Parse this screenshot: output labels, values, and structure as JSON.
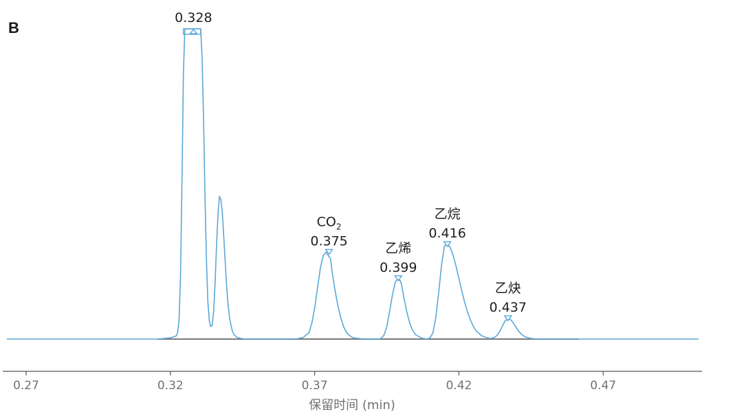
{
  "panel_label": "B",
  "chart_data": {
    "type": "line",
    "xlabel": "保留时间 (min)",
    "ylabel": "",
    "xlim": [
      0.262,
      0.507
    ],
    "x_ticks": [
      0.27,
      0.32,
      0.37,
      0.42,
      0.47
    ],
    "x_tick_labels": [
      "0.27",
      "0.32",
      "0.37",
      "0.42",
      "0.47"
    ],
    "ylim": [
      0,
      1
    ],
    "grid": false,
    "series": [
      {
        "color": "#5aa7d6",
        "x": [
          0.262,
          0.316,
          0.318,
          0.32,
          0.322,
          0.3225,
          0.323,
          0.3235,
          0.324,
          0.3245,
          0.325,
          0.3285,
          0.3305,
          0.331,
          0.3315,
          0.332,
          0.3325,
          0.333,
          0.3335,
          0.334,
          0.3345,
          0.335,
          0.3355,
          0.336,
          0.3365,
          0.337,
          0.3375,
          0.338,
          0.3385,
          0.339,
          0.3395,
          0.34,
          0.3405,
          0.341,
          0.3415,
          0.342,
          0.343,
          0.344,
          0.345,
          0.347,
          0.35,
          0.36,
          0.364,
          0.366,
          0.368,
          0.369,
          0.37,
          0.371,
          0.372,
          0.373,
          0.374,
          0.375,
          0.3755,
          0.376,
          0.377,
          0.378,
          0.379,
          0.38,
          0.381,
          0.382,
          0.383,
          0.384,
          0.386,
          0.388,
          0.392,
          0.393,
          0.394,
          0.395,
          0.396,
          0.397,
          0.398,
          0.399,
          0.3995,
          0.4,
          0.401,
          0.402,
          0.403,
          0.404,
          0.405,
          0.407,
          0.409,
          0.41,
          0.411,
          0.412,
          0.413,
          0.414,
          0.415,
          0.416,
          0.4165,
          0.417,
          0.418,
          0.419,
          0.42,
          0.421,
          0.422,
          0.423,
          0.424,
          0.425,
          0.426,
          0.428,
          0.43,
          0.431,
          0.432,
          0.433,
          0.434,
          0.435,
          0.436,
          0.437,
          0.438,
          0.439,
          0.44,
          0.441,
          0.442,
          0.443,
          0.445,
          0.447,
          0.45,
          0.507
        ],
        "y": [
          0,
          0,
          0.002,
          0.004,
          0.01,
          0.02,
          0.06,
          0.2,
          0.5,
          0.85,
          1.0,
          1.0,
          1.0,
          0.9,
          0.7,
          0.45,
          0.25,
          0.12,
          0.06,
          0.04,
          0.045,
          0.09,
          0.18,
          0.3,
          0.4,
          0.46,
          0.45,
          0.41,
          0.33,
          0.25,
          0.17,
          0.11,
          0.07,
          0.045,
          0.025,
          0.015,
          0.006,
          0.003,
          0.001,
          0,
          0,
          0,
          0.001,
          0.005,
          0.02,
          0.05,
          0.1,
          0.165,
          0.23,
          0.27,
          0.28,
          0.265,
          0.26,
          0.22,
          0.16,
          0.11,
          0.07,
          0.04,
          0.022,
          0.012,
          0.006,
          0.003,
          0.001,
          0,
          0,
          0.002,
          0.012,
          0.04,
          0.09,
          0.145,
          0.185,
          0.195,
          0.19,
          0.18,
          0.13,
          0.085,
          0.05,
          0.027,
          0.014,
          0.003,
          0,
          0.004,
          0.02,
          0.07,
          0.15,
          0.24,
          0.3,
          0.305,
          0.3,
          0.295,
          0.27,
          0.235,
          0.195,
          0.155,
          0.118,
          0.087,
          0.061,
          0.041,
          0.026,
          0.01,
          0.003,
          0.002,
          0.004,
          0.01,
          0.022,
          0.041,
          0.058,
          0.066,
          0.062,
          0.05,
          0.035,
          0.022,
          0.013,
          0.007,
          0.002,
          0,
          0,
          0
        ]
      }
    ],
    "baseline": {
      "color": "#7a7a7a",
      "x_start": 0.3155,
      "x_end": 0.4615
    },
    "annotations": [
      {
        "labels": [
          "0.328"
        ],
        "x": 0.328,
        "y": 1.0,
        "marker": "up",
        "box": true
      },
      {
        "labels": [
          "CO2",
          "0.375"
        ],
        "x": 0.375,
        "y": 0.28,
        "marker": "down",
        "sub_index": 0
      },
      {
        "labels": [
          "乙烯",
          "0.399"
        ],
        "x": 0.399,
        "y": 0.195,
        "marker": "down"
      },
      {
        "labels": [
          "乙烷",
          "0.416"
        ],
        "x": 0.416,
        "y": 0.305,
        "marker": "down"
      },
      {
        "labels": [
          "乙炔",
          "0.437"
        ],
        "x": 0.437,
        "y": 0.066,
        "marker": "down"
      }
    ]
  }
}
